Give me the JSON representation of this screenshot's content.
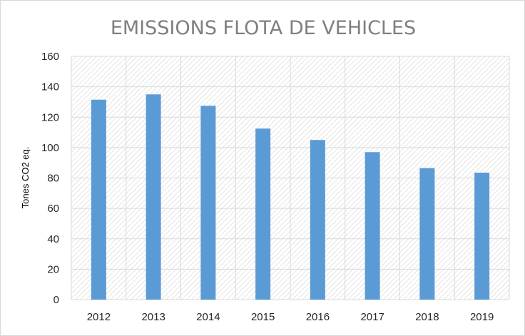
{
  "chart_data": {
    "type": "bar",
    "title": "EMISSIONS FLOTA DE VEHICLES",
    "xlabel": "",
    "ylabel": "Tones CO2 eq.",
    "categories": [
      "2012",
      "2013",
      "2014",
      "2015",
      "2016",
      "2017",
      "2018",
      "2019"
    ],
    "values": [
      131.5,
      135,
      127.5,
      112.5,
      105,
      97,
      86.5,
      83.5
    ],
    "ylim": [
      0,
      160
    ],
    "yticks": [
      0,
      20,
      40,
      60,
      80,
      100,
      120,
      140,
      160
    ],
    "grid": true,
    "legend": "none",
    "colors": {
      "bar": "#5b9bd5",
      "grid": "#d9d9d9",
      "plot_hatch": "#d9d9d9",
      "title": "#7f7f7f"
    }
  }
}
